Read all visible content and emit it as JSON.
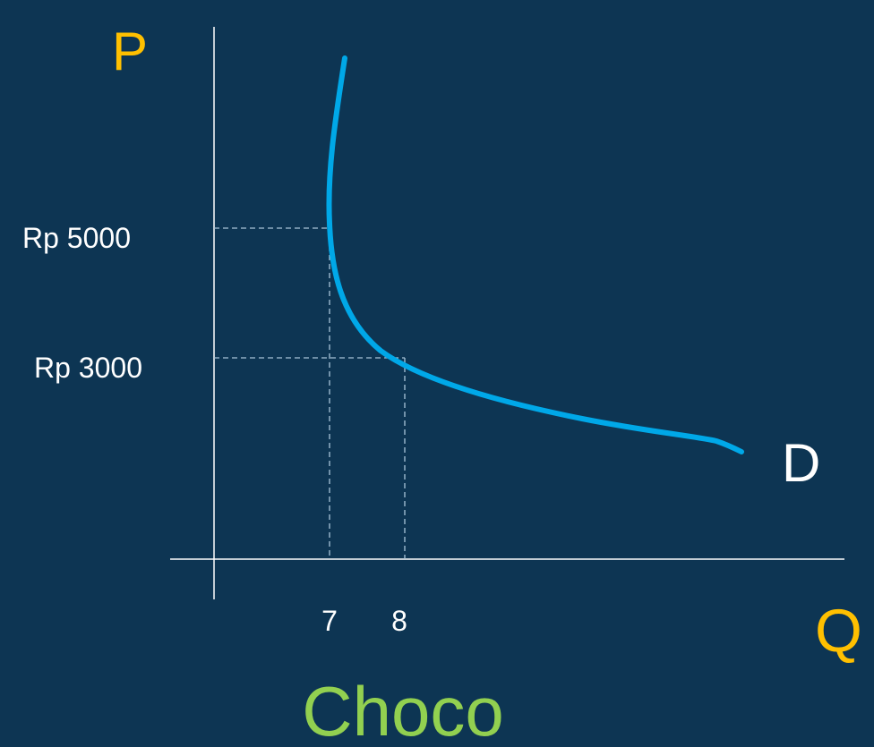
{
  "axes": {
    "y_label": "P",
    "x_label": "Q"
  },
  "price_labels": [
    "Rp 5000",
    "Rp 3000"
  ],
  "quantity_labels": [
    "7",
    "8"
  ],
  "curve_label": "D",
  "title": "Choco"
}
